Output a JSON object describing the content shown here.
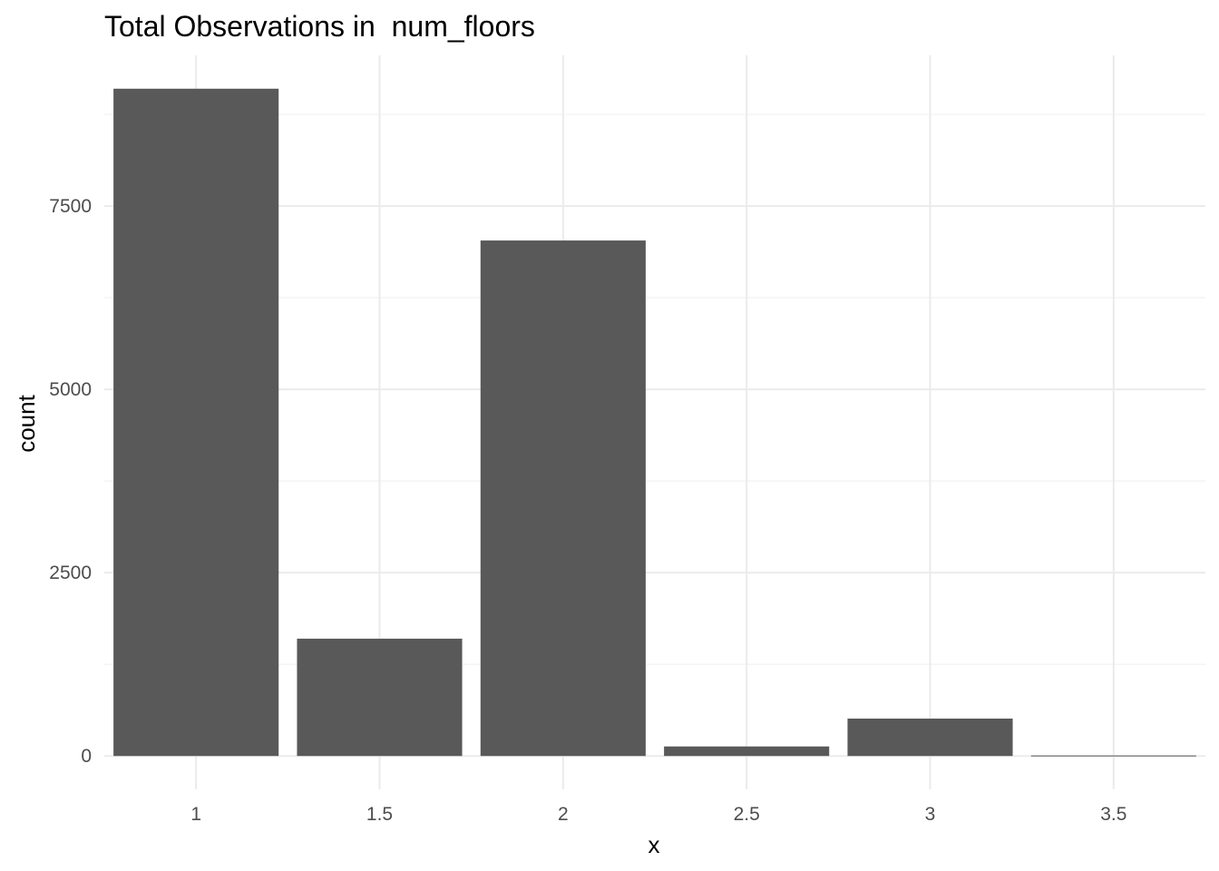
{
  "chart_data": {
    "type": "bar",
    "title": "Total Observations in  num_floors",
    "xlabel": "x",
    "ylabel": "count",
    "x": [
      1,
      1.5,
      2,
      2.5,
      3,
      3.5
    ],
    "x_tick_labels": [
      "1",
      "1.5",
      "2",
      "2.5",
      "3",
      "3.5"
    ],
    "values": [
      9100,
      1600,
      7030,
      130,
      510,
      7
    ],
    "y_ticks": [
      0,
      2500,
      5000,
      7500
    ],
    "y_tick_labels": [
      "0",
      "2500",
      "5000",
      "7500"
    ],
    "xlim": [
      0.75,
      3.75
    ],
    "ylim": [
      -455,
      9555
    ],
    "grid": true,
    "bar_color": "#595959"
  }
}
